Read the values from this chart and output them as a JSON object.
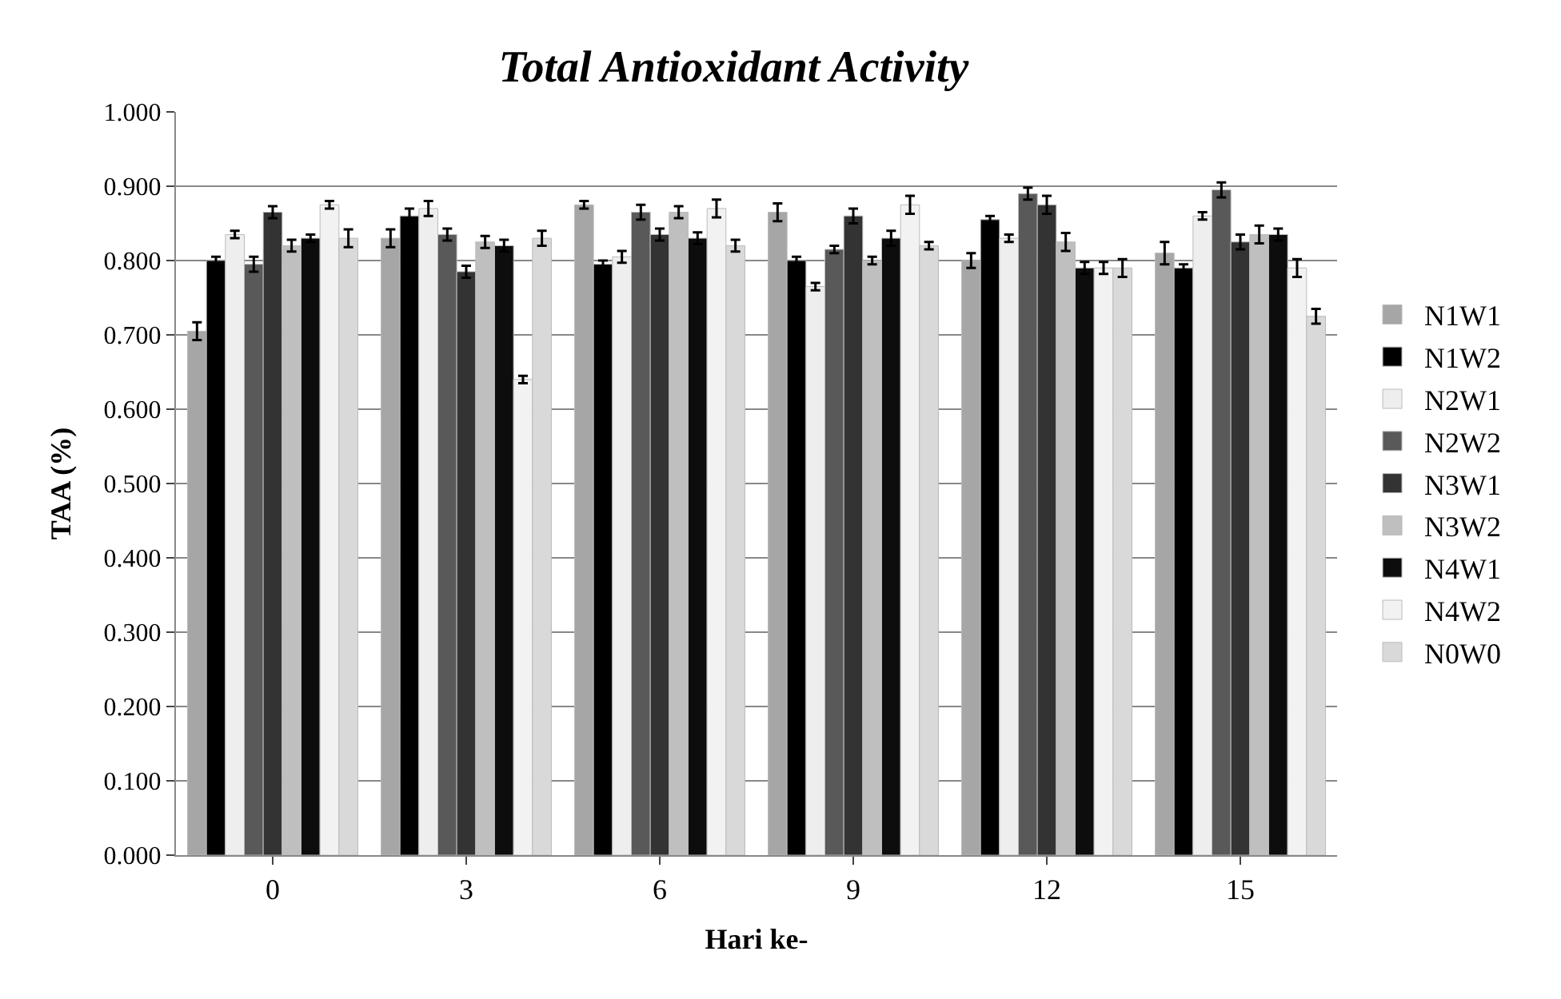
{
  "chart_data": {
    "type": "bar",
    "title": "Total Antioxidant Activity",
    "xlabel": "Hari ke-",
    "ylabel": "TAA (%)",
    "categories": [
      "0",
      "3",
      "6",
      "9",
      "12",
      "15"
    ],
    "series": [
      {
        "name": "N1W1",
        "color": "#a6a6a6",
        "values": [
          0.705,
          0.83,
          0.875,
          0.865,
          0.8,
          0.81
        ],
        "errors": [
          0.012,
          0.012,
          0.005,
          0.012,
          0.01,
          0.015
        ]
      },
      {
        "name": "N1W2",
        "color": "#000000",
        "values": [
          0.8,
          0.86,
          0.795,
          0.8,
          0.855,
          0.79
        ],
        "errors": [
          0.005,
          0.01,
          0.005,
          0.005,
          0.005,
          0.005
        ]
      },
      {
        "name": "N2W1",
        "color": "#eeeeee",
        "values": [
          0.835,
          0.87,
          0.805,
          0.765,
          0.83,
          0.86
        ],
        "errors": [
          0.005,
          0.01,
          0.008,
          0.005,
          0.005,
          0.005
        ]
      },
      {
        "name": "N2W2",
        "color": "#595959",
        "values": [
          0.795,
          0.835,
          0.865,
          0.815,
          0.89,
          0.895
        ],
        "errors": [
          0.01,
          0.008,
          0.01,
          0.005,
          0.008,
          0.01
        ]
      },
      {
        "name": "N3W1",
        "color": "#333333",
        "values": [
          0.865,
          0.785,
          0.835,
          0.86,
          0.875,
          0.825
        ],
        "errors": [
          0.008,
          0.008,
          0.008,
          0.01,
          0.012,
          0.01
        ]
      },
      {
        "name": "N3W2",
        "color": "#bfbfbf",
        "values": [
          0.82,
          0.825,
          0.865,
          0.8,
          0.825,
          0.835
        ],
        "errors": [
          0.008,
          0.008,
          0.008,
          0.005,
          0.012,
          0.012
        ]
      },
      {
        "name": "N4W1",
        "color": "#0d0d0d",
        "values": [
          0.83,
          0.82,
          0.83,
          0.83,
          0.79,
          0.835
        ],
        "errors": [
          0.005,
          0.008,
          0.008,
          0.01,
          0.008,
          0.008
        ]
      },
      {
        "name": "N4W2",
        "color": "#f2f2f2",
        "values": [
          0.875,
          0.64,
          0.87,
          0.875,
          0.79,
          0.79
        ],
        "errors": [
          0.005,
          0.005,
          0.012,
          0.012,
          0.008,
          0.012
        ]
      },
      {
        "name": "N0W0",
        "color": "#d9d9d9",
        "values": [
          0.83,
          0.83,
          0.82,
          0.82,
          0.79,
          0.725
        ],
        "errors": [
          0.012,
          0.01,
          0.008,
          0.005,
          0.012,
          0.01
        ]
      }
    ],
    "ylim": [
      0,
      1
    ],
    "yticks": [
      {
        "value": 0,
        "label": "0.000"
      },
      {
        "value": 0.1,
        "label": "0.100"
      },
      {
        "value": 0.2,
        "label": "0.200"
      },
      {
        "value": 0.3,
        "label": "0.300"
      },
      {
        "value": 0.4,
        "label": "0.400"
      },
      {
        "value": 0.5,
        "label": "0.500"
      },
      {
        "value": 0.6,
        "label": "0.600"
      },
      {
        "value": 0.7,
        "label": "0.700"
      },
      {
        "value": 0.8,
        "label": "0.800"
      },
      {
        "value": 0.9,
        "label": "0.900"
      },
      {
        "value": 1,
        "label": "1.000"
      }
    ],
    "grid": "y",
    "legend": "right"
  }
}
